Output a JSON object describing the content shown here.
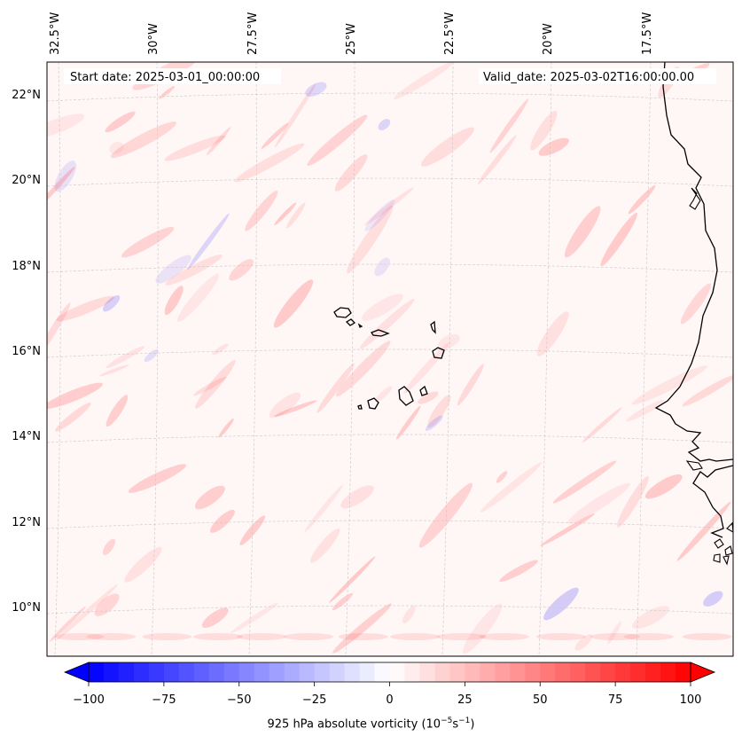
{
  "header": {
    "start_date": "Start date: 2025-03-01_00:00:00",
    "valid_date": "Valid_date: 2025-03-02T16:00:00.00"
  },
  "longitude_labels": [
    "32.5°W",
    "30°W",
    "27.5°W",
    "25°W",
    "22.5°W",
    "20°W",
    "17.5°W"
  ],
  "latitude_labels": [
    "22°N",
    "20°N",
    "18°N",
    "16°N",
    "14°N",
    "12°N",
    "10°N"
  ],
  "colorbar": {
    "min": -100,
    "max": 100,
    "tick_labels": [
      "−100",
      "−75",
      "−50",
      "−25",
      "0",
      "25",
      "50",
      "75",
      "100"
    ],
    "label_prefix": "925 hPa absolute vorticity (10",
    "label_exp1": "−5",
    "label_mid": "s",
    "label_exp2": "−1",
    "label_suffix": ")",
    "cmap": "bwr"
  },
  "colors": {
    "coastline": "#000000",
    "gridline": "#b0b0b0",
    "background_field": "#fff6f6",
    "positive": "#ff0000",
    "negative": "#0000ff"
  }
}
